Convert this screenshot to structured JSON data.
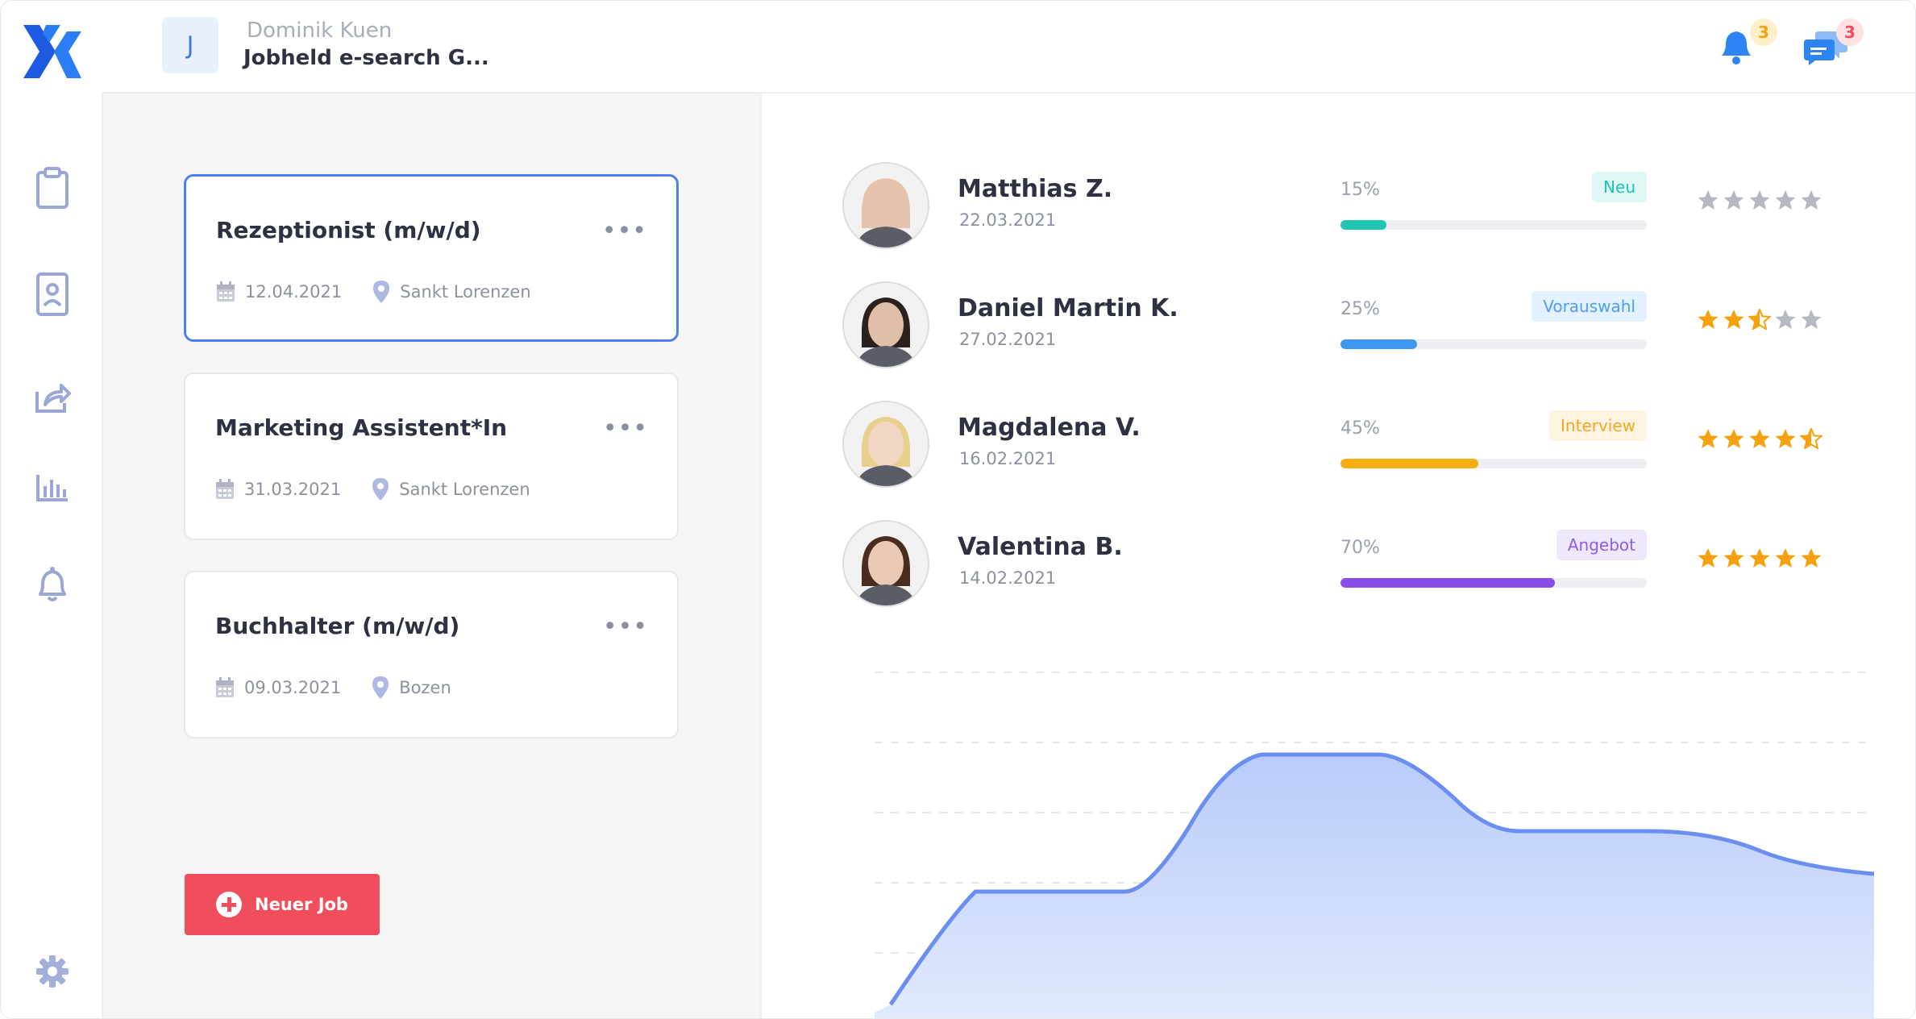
{
  "header": {
    "avatar_letter": "J",
    "user_name": "Dominik Kuen",
    "company": "Jobheld e-search G...",
    "notifications_count": "3",
    "messages_count": "3"
  },
  "sidebar": {
    "items": [
      {
        "icon": "clipboard-icon"
      },
      {
        "icon": "contact-card-icon"
      },
      {
        "icon": "share-icon"
      },
      {
        "icon": "bar-chart-icon"
      },
      {
        "icon": "bell-icon"
      }
    ],
    "settings_icon": "gear-icon"
  },
  "jobs": [
    {
      "title": "Rezeptionist (m/w/d)",
      "date": "12.04.2021",
      "location": "Sankt Lorenzen",
      "active": true
    },
    {
      "title": "Marketing Assistent*In",
      "date": "31.03.2021",
      "location": "Sankt Lorenzen",
      "active": false
    },
    {
      "title": "Buchhalter (m/w/d)",
      "date": "09.03.2021",
      "location": "Bozen",
      "active": false
    }
  ],
  "new_job_label": "Neuer Job",
  "candidates": [
    {
      "name": "Matthias Z.",
      "date": "22.03.2021",
      "percent_label": "15%",
      "progress": 0.15,
      "status": "Neu",
      "status_color": "#1cc5b7",
      "status_bg": "#dff7f5",
      "bar_color": "#22c4b4",
      "rating": 0
    },
    {
      "name": "Daniel Martin K.",
      "date": "27.02.2021",
      "percent_label": "25%",
      "progress": 0.25,
      "status": "Vorauswahl",
      "status_color": "#4d9ff0",
      "status_bg": "#e3f0fd",
      "bar_color": "#3d96ef",
      "rating": 2.5
    },
    {
      "name": "Magdalena V.",
      "date": "16.02.2021",
      "percent_label": "45%",
      "progress": 0.45,
      "status": "Interview",
      "status_color": "#f5a623",
      "status_bg": "#fdf3e1",
      "bar_color": "#f8ad10",
      "rating": 4.5
    },
    {
      "name": "Valentina B.",
      "date": "14.02.2021",
      "percent_label": "70%",
      "progress": 0.7,
      "status": "Angebot",
      "status_color": "#8d5fe0",
      "status_bg": "#efe7fb",
      "bar_color": "#8a4ee8",
      "rating": 5
    }
  ],
  "colors": {
    "accent": "#4f7ef0",
    "star_filled": "#f8a10e",
    "star_empty": "#b5b8c2",
    "chart_line": "#6a8ff0",
    "chart_fill": "#cfdcfb"
  }
}
